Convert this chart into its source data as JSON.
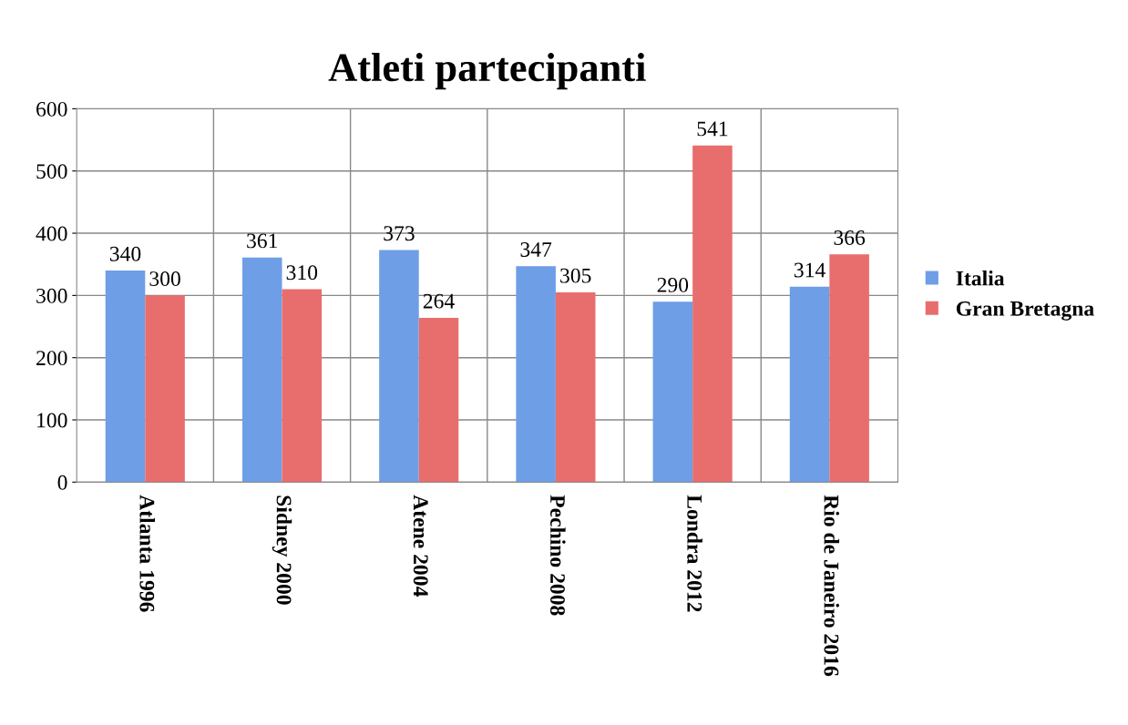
{
  "chart_data": {
    "type": "bar",
    "title": "Atleti partecipanti",
    "categories": [
      "Atlanta 1996",
      "Sidney 2000",
      "Atene 2004",
      "Pechino 2008",
      "Londra 2012",
      "Rio de Janeiro 2016"
    ],
    "series": [
      {
        "name": "Italia",
        "color": "#6e9ee6",
        "values": [
          340,
          361,
          373,
          347,
          290,
          314
        ]
      },
      {
        "name": "Gran Bretagna",
        "color": "#e86e6e",
        "values": [
          300,
          310,
          264,
          305,
          541,
          366
        ]
      }
    ],
    "ylim": [
      0,
      600
    ],
    "yticks": [
      0,
      100,
      200,
      300,
      400,
      500,
      600
    ],
    "grid": true,
    "legend": "right",
    "data_labels": true
  }
}
